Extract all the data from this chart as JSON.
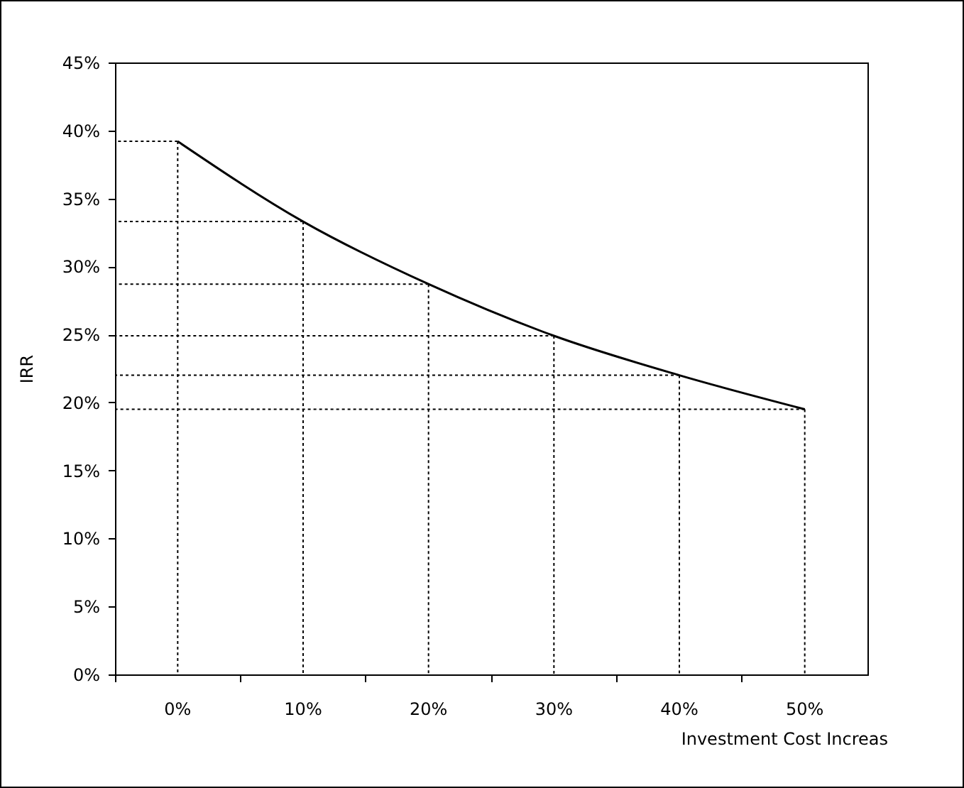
{
  "chart_data": {
    "type": "line",
    "xlabel": "Investment Cost Increas",
    "ylabel": "IRR",
    "categories": [
      "0%",
      "10%",
      "20%",
      "30%",
      "40%",
      "50%"
    ],
    "series": [
      {
        "color": "#000000",
        "values": [
          39.2,
          33.3,
          28.7,
          24.9,
          22.0,
          19.5
        ]
      }
    ],
    "ylim": [
      0,
      45
    ],
    "yticks": [
      {
        "value": 0,
        "label": "0%"
      },
      {
        "value": 5,
        "label": "5%"
      },
      {
        "value": 10,
        "label": "10%"
      },
      {
        "value": 15,
        "label": "15%"
      },
      {
        "value": 20,
        "label": "20%"
      },
      {
        "value": 25,
        "label": "25%"
      },
      {
        "value": 30,
        "label": "30%"
      },
      {
        "value": 35,
        "label": "35%"
      },
      {
        "value": 40,
        "label": "40%"
      },
      {
        "value": 45,
        "label": "45%"
      }
    ],
    "ref_lines": [
      {
        "axis": "x",
        "value": "0%",
        "line_style": "dotted"
      },
      {
        "axis": "x",
        "value": "10%",
        "line_style": "dotted"
      },
      {
        "axis": "x",
        "value": "20%",
        "line_style": "dotted"
      },
      {
        "axis": "x",
        "value": "30%",
        "line_style": "dotted"
      },
      {
        "axis": "x",
        "value": "40%",
        "line_style": "dotted"
      },
      {
        "axis": "x",
        "value": "50%",
        "line_style": "dotted"
      },
      {
        "axis": "y",
        "value": 39.2,
        "line_style": "dotted"
      },
      {
        "axis": "y",
        "value": 33.3,
        "line_style": "dotted"
      },
      {
        "axis": "y",
        "value": 28.7,
        "line_style": "dotted"
      },
      {
        "axis": "y",
        "value": 24.9,
        "line_style": "dotted"
      },
      {
        "axis": "y",
        "value": 22.0,
        "line_style": "dotted"
      },
      {
        "axis": "y",
        "value": 19.5,
        "line_style": "dotted"
      }
    ],
    "grid": false,
    "legend": false,
    "marker": "none",
    "line_style": "solid"
  }
}
